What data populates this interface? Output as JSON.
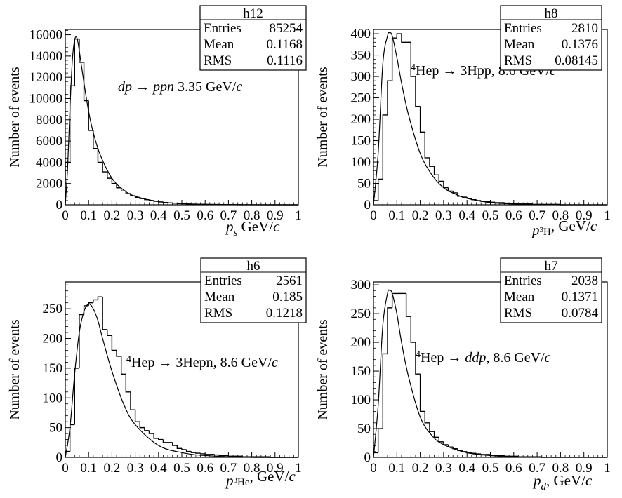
{
  "chart_data": [
    {
      "type": "histogram",
      "hist_name": "h12",
      "stats": [
        {
          "label": "Entries",
          "value": "85254"
        },
        {
          "label": "Mean",
          "value": "0.1168"
        },
        {
          "label": "RMS",
          "value": "0.1116"
        }
      ],
      "ylabel": "Number of events",
      "xlabel_main": "p",
      "xlabel_sub": "s",
      "xlabel_sup": "",
      "xlabel_unit": " GeV/c",
      "reaction": "dp → ppn 3.35 GeV/c",
      "xlim": [
        0,
        1
      ],
      "ylim": [
        0,
        16500
      ],
      "xticks": [
        "0",
        "0.1",
        "0.2",
        "0.3",
        "0.4",
        "0.5",
        "0.6",
        "0.7",
        "0.8",
        "0.9",
        "1"
      ],
      "yticks": [
        0,
        2000,
        4000,
        6000,
        8000,
        10000,
        12000,
        14000,
        16000
      ],
      "bin_width": 0.02,
      "hist_values": [
        4000,
        11200,
        15600,
        13400,
        9800,
        7000,
        5300,
        4000,
        3100,
        2500,
        2000,
        1600,
        1300,
        1050,
        850,
        700,
        580,
        480,
        400,
        330,
        270,
        220,
        180,
        150,
        120,
        100,
        80,
        65,
        55,
        45,
        40,
        30,
        25,
        20,
        15,
        12,
        10,
        8,
        6,
        5,
        4,
        3,
        3,
        2,
        2,
        2,
        1,
        1,
        1,
        1
      ],
      "fit_x": [
        0.0,
        0.01,
        0.02,
        0.03,
        0.04,
        0.05,
        0.06,
        0.08,
        0.1,
        0.12,
        0.15,
        0.2,
        0.25,
        0.3,
        0.4,
        0.5,
        0.6,
        0.8,
        1.0
      ],
      "fit_y": [
        0,
        3500,
        9000,
        13500,
        15500,
        15700,
        14500,
        11500,
        8800,
        6800,
        4700,
        2500,
        1400,
        800,
        300,
        110,
        40,
        5,
        0
      ]
    },
    {
      "type": "histogram",
      "hist_name": "h8",
      "stats": [
        {
          "label": "Entries",
          "value": "2810"
        },
        {
          "label": "Mean",
          "value": "0.1376"
        },
        {
          "label": "RMS",
          "value": "0.08145"
        }
      ],
      "ylabel": "Number of events",
      "xlabel_main": "p",
      "xlabel_sub": "3H",
      "xlabel_sup": "",
      "xlabel_unit": ", GeV/c",
      "reaction": "4Hep → 3Hpp, 8.6 GeV/c",
      "xlim": [
        0,
        1
      ],
      "ylim": [
        0,
        410
      ],
      "xticks": [
        "0",
        "0.1",
        "0.2",
        "0.3",
        "0.4",
        "0.5",
        "0.6",
        "0.7",
        "0.8",
        "0.9",
        "1"
      ],
      "yticks": [
        0,
        50,
        100,
        150,
        200,
        250,
        300,
        350,
        400
      ],
      "bin_width": 0.02,
      "hist_values": [
        10,
        60,
        210,
        290,
        390,
        400,
        380,
        380,
        300,
        230,
        170,
        110,
        90,
        70,
        55,
        40,
        32,
        28,
        20,
        18,
        15,
        12,
        10,
        8,
        7,
        6,
        5,
        5,
        4,
        3,
        3,
        2,
        2,
        2,
        1,
        1,
        1,
        1,
        1,
        1,
        0,
        0,
        0,
        0,
        0,
        0,
        0,
        0,
        0,
        0
      ],
      "fit_x": [
        0.0,
        0.02,
        0.04,
        0.06,
        0.07,
        0.08,
        0.1,
        0.12,
        0.15,
        0.2,
        0.25,
        0.3,
        0.35,
        0.4,
        0.5,
        0.6,
        0.8
      ],
      "fit_y": [
        0,
        120,
        330,
        395,
        402,
        395,
        345,
        285,
        210,
        120,
        70,
        40,
        25,
        15,
        5,
        2,
        0
      ]
    },
    {
      "type": "histogram",
      "hist_name": "h6",
      "stats": [
        {
          "label": "Entries",
          "value": "2561"
        },
        {
          "label": "Mean",
          "value": "0.185"
        },
        {
          "label": "RMS",
          "value": "0.1218"
        }
      ],
      "ylabel": "Number of events",
      "xlabel_main": "p",
      "xlabel_sub": "3He",
      "xlabel_sup": "",
      "xlabel_unit": ", GeV/c",
      "reaction": "4Hep → 3Hepn, 8.6 GeV/c",
      "xlim": [
        0,
        1
      ],
      "ylim": [
        0,
        295
      ],
      "xticks": [
        "0",
        "0.1",
        "0.2",
        "0.3",
        "0.4",
        "0.5",
        "0.6",
        "0.7",
        "0.8",
        "0.9",
        "1"
      ],
      "yticks": [
        0,
        50,
        100,
        150,
        200,
        250
      ],
      "bin_width": 0.02,
      "hist_values": [
        10,
        55,
        150,
        240,
        255,
        260,
        265,
        270,
        215,
        205,
        180,
        170,
        140,
        110,
        80,
        60,
        50,
        45,
        40,
        32,
        30,
        25,
        25,
        20,
        15,
        13,
        10,
        8,
        7,
        6,
        5,
        5,
        4,
        3,
        3,
        2,
        2,
        2,
        1,
        1,
        1,
        1,
        1,
        1,
        0,
        0,
        0,
        0,
        0,
        0
      ],
      "fit_x": [
        0.0,
        0.02,
        0.04,
        0.06,
        0.08,
        0.1,
        0.12,
        0.14,
        0.16,
        0.2,
        0.25,
        0.3,
        0.4,
        0.5,
        0.6,
        0.8,
        1.0
      ],
      "fit_y": [
        0,
        50,
        140,
        210,
        245,
        258,
        250,
        230,
        200,
        145,
        90,
        55,
        20,
        8,
        3,
        0,
        0
      ]
    },
    {
      "type": "histogram",
      "hist_name": "h7",
      "stats": [
        {
          "label": "Entries",
          "value": "2038"
        },
        {
          "label": "Mean",
          "value": "0.1371"
        },
        {
          "label": "RMS",
          "value": "0.0784"
        }
      ],
      "ylabel": "Number of events",
      "xlabel_main": "p",
      "xlabel_sub": "d",
      "xlabel_sup": "",
      "xlabel_unit": ", GeV/c",
      "reaction": "4Hep → ddp, 8.6 GeV/c",
      "xlim": [
        0,
        1
      ],
      "ylim": [
        0,
        305
      ],
      "xticks": [
        "0",
        "0.1",
        "0.2",
        "0.3",
        "0.4",
        "0.5",
        "0.6",
        "0.7",
        "0.8",
        "0.9",
        "1"
      ],
      "yticks": [
        0,
        50,
        100,
        150,
        200,
        250,
        300
      ],
      "bin_width": 0.02,
      "hist_values": [
        8,
        50,
        180,
        260,
        285,
        285,
        285,
        245,
        200,
        145,
        80,
        60,
        45,
        35,
        27,
        22,
        18,
        15,
        12,
        10,
        8,
        7,
        6,
        5,
        5,
        4,
        3,
        3,
        2,
        2,
        2,
        1,
        1,
        1,
        1,
        1,
        0,
        0,
        0,
        0,
        0,
        0,
        0,
        0,
        0,
        0,
        0,
        0,
        0,
        0
      ],
      "fit_x": [
        0.0,
        0.02,
        0.04,
        0.06,
        0.07,
        0.08,
        0.1,
        0.12,
        0.15,
        0.2,
        0.25,
        0.3,
        0.4,
        0.5,
        0.6,
        0.8
      ],
      "fit_y": [
        0,
        90,
        230,
        285,
        290,
        285,
        250,
        200,
        140,
        70,
        38,
        22,
        8,
        3,
        1,
        0
      ]
    }
  ]
}
